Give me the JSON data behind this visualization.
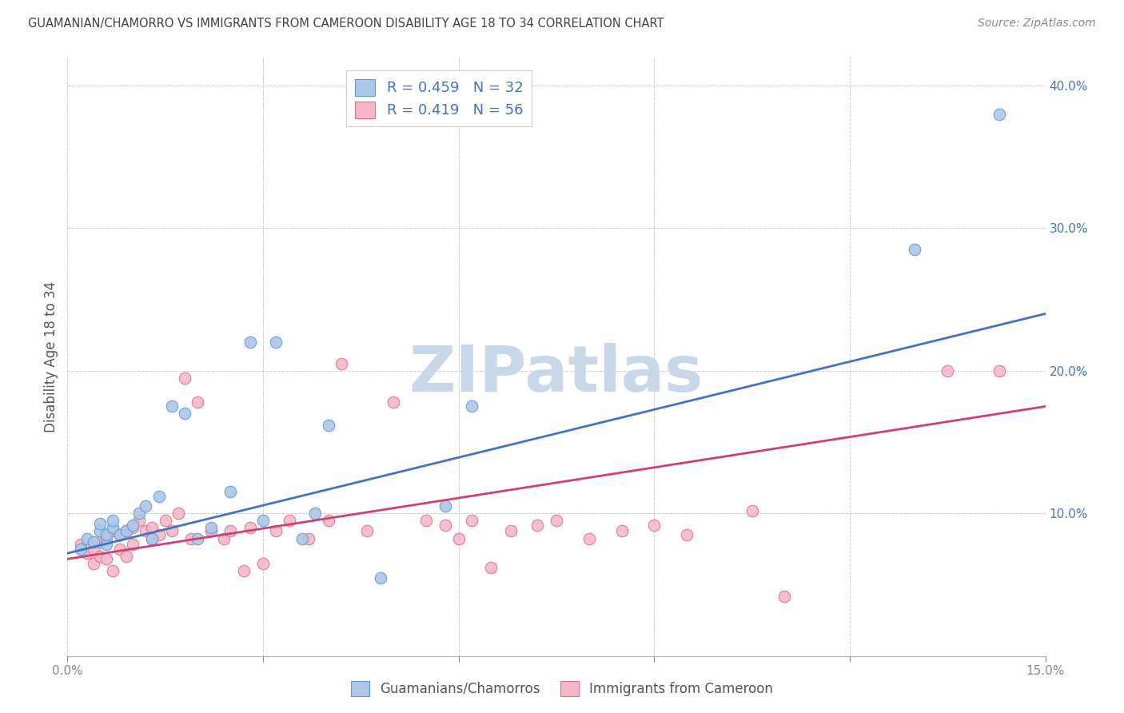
{
  "title": "GUAMANIAN/CHAMORRO VS IMMIGRANTS FROM CAMEROON DISABILITY AGE 18 TO 34 CORRELATION CHART",
  "source": "Source: ZipAtlas.com",
  "ylabel": "Disability Age 18 to 34",
  "xlim": [
    0.0,
    0.15
  ],
  "ylim": [
    0.0,
    0.42
  ],
  "y_ticks": [
    0.0,
    0.1,
    0.2,
    0.3,
    0.4
  ],
  "x_ticks": [
    0.0,
    0.03,
    0.06,
    0.09,
    0.12,
    0.15
  ],
  "blue_fill_color": "#aec6e8",
  "blue_edge_color": "#5b9bd5",
  "pink_fill_color": "#f4b8c8",
  "pink_edge_color": "#e07090",
  "blue_line_color": "#4472c4",
  "pink_line_color": "#d04070",
  "legend_R_blue": "0.459",
  "legend_N_blue": "32",
  "legend_R_pink": "0.419",
  "legend_N_pink": "56",
  "blue_label": "Guamanians/Chamorros",
  "pink_label": "Immigrants from Cameroon",
  "blue_scatter_x": [
    0.002,
    0.003,
    0.004,
    0.005,
    0.005,
    0.006,
    0.006,
    0.007,
    0.007,
    0.008,
    0.009,
    0.01,
    0.011,
    0.012,
    0.013,
    0.014,
    0.016,
    0.018,
    0.02,
    0.022,
    0.025,
    0.028,
    0.03,
    0.032,
    0.036,
    0.038,
    0.04,
    0.048,
    0.058,
    0.062,
    0.13,
    0.143
  ],
  "blue_scatter_y": [
    0.075,
    0.082,
    0.08,
    0.088,
    0.093,
    0.078,
    0.085,
    0.09,
    0.095,
    0.085,
    0.088,
    0.092,
    0.1,
    0.105,
    0.082,
    0.112,
    0.175,
    0.17,
    0.082,
    0.09,
    0.115,
    0.22,
    0.095,
    0.22,
    0.082,
    0.1,
    0.162,
    0.055,
    0.105,
    0.175,
    0.285,
    0.38
  ],
  "pink_scatter_x": [
    0.002,
    0.003,
    0.004,
    0.004,
    0.005,
    0.005,
    0.006,
    0.006,
    0.007,
    0.007,
    0.008,
    0.008,
    0.009,
    0.009,
    0.01,
    0.01,
    0.011,
    0.012,
    0.013,
    0.013,
    0.014,
    0.015,
    0.016,
    0.017,
    0.018,
    0.019,
    0.02,
    0.022,
    0.024,
    0.025,
    0.027,
    0.028,
    0.03,
    0.032,
    0.034,
    0.037,
    0.04,
    0.042,
    0.046,
    0.05,
    0.055,
    0.058,
    0.06,
    0.062,
    0.065,
    0.068,
    0.072,
    0.075,
    0.08,
    0.085,
    0.09,
    0.095,
    0.105,
    0.11,
    0.135,
    0.143
  ],
  "pink_scatter_y": [
    0.078,
    0.072,
    0.065,
    0.075,
    0.07,
    0.08,
    0.068,
    0.082,
    0.06,
    0.088,
    0.075,
    0.085,
    0.07,
    0.088,
    0.078,
    0.09,
    0.095,
    0.088,
    0.082,
    0.09,
    0.085,
    0.095,
    0.088,
    0.1,
    0.195,
    0.082,
    0.178,
    0.088,
    0.082,
    0.088,
    0.06,
    0.09,
    0.065,
    0.088,
    0.095,
    0.082,
    0.095,
    0.205,
    0.088,
    0.178,
    0.095,
    0.092,
    0.082,
    0.095,
    0.062,
    0.088,
    0.092,
    0.095,
    0.082,
    0.088,
    0.092,
    0.085,
    0.102,
    0.042,
    0.2,
    0.2
  ],
  "blue_line_x0": 0.0,
  "blue_line_y0": 0.072,
  "blue_line_x1": 0.15,
  "blue_line_y1": 0.24,
  "pink_line_x0": 0.0,
  "pink_line_y0": 0.068,
  "pink_line_x1": 0.15,
  "pink_line_y1": 0.175,
  "background_color": "#ffffff",
  "grid_color": "#cccccc",
  "title_color": "#404040",
  "watermark_text": "ZIPatlas",
  "watermark_color": "#c8d8e8",
  "right_tick_color": "#4472c4",
  "legend_text_color": "#4472c4"
}
